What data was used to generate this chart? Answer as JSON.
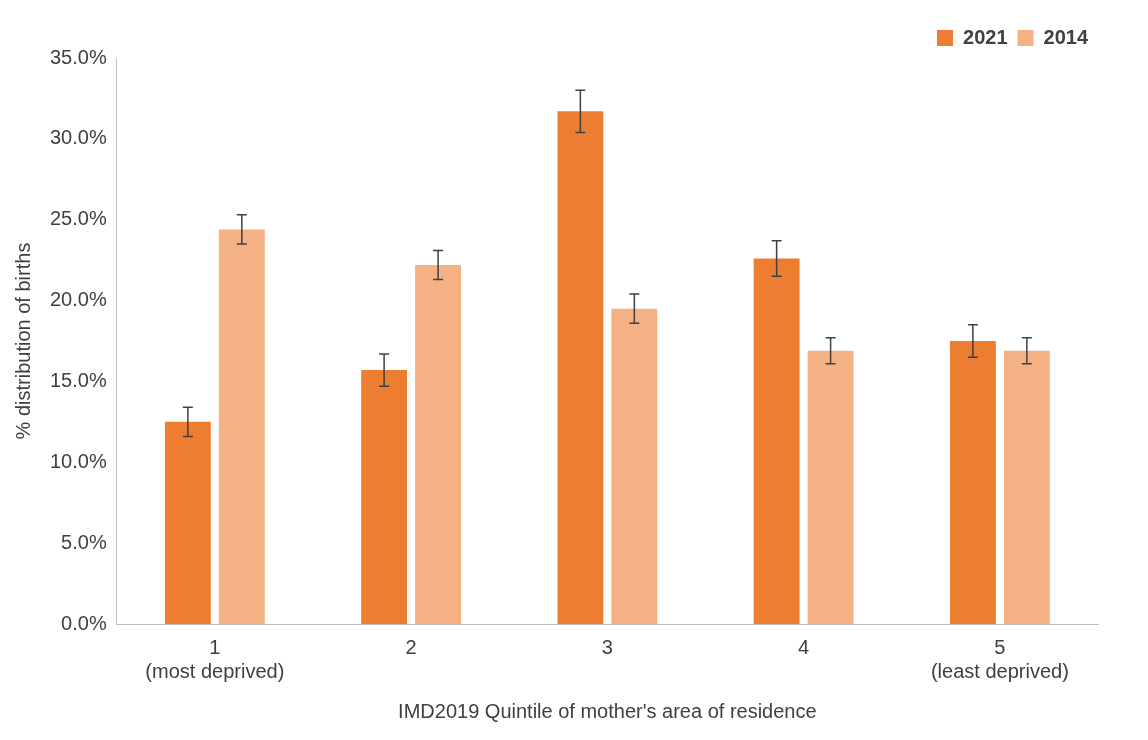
{
  "chart_data": {
    "type": "bar",
    "xlabel": "IMD2019 Quintile of mother's area of residence",
    "ylabel": "% distribution of births",
    "categories": [
      "1\n(most deprived)",
      "2",
      "3",
      "4",
      "5\n(least deprived)"
    ],
    "series": [
      {
        "name": "2021",
        "color": "#ed7d31",
        "values": [
          12.5,
          15.7,
          31.7,
          22.6,
          17.5
        ],
        "errors": [
          0.9,
          1.0,
          1.3,
          1.1,
          1.0
        ]
      },
      {
        "name": "2014",
        "color": "#f4b183",
        "values": [
          24.4,
          22.2,
          19.5,
          16.9,
          16.9
        ],
        "errors": [
          0.9,
          0.9,
          0.9,
          0.8,
          0.8
        ]
      }
    ],
    "ylim": [
      0,
      35
    ],
    "yticks": [
      {
        "value": 0,
        "label": "0.0%"
      },
      {
        "value": 5,
        "label": "5.0%"
      },
      {
        "value": 10,
        "label": "10.0%"
      },
      {
        "value": 15,
        "label": "15.0%"
      },
      {
        "value": 20,
        "label": "20.0%"
      },
      {
        "value": 25,
        "label": "25.0%"
      },
      {
        "value": 30,
        "label": "30.0%"
      },
      {
        "value": 35,
        "label": "35.0%"
      }
    ],
    "grid": false,
    "legend": "top right"
  }
}
